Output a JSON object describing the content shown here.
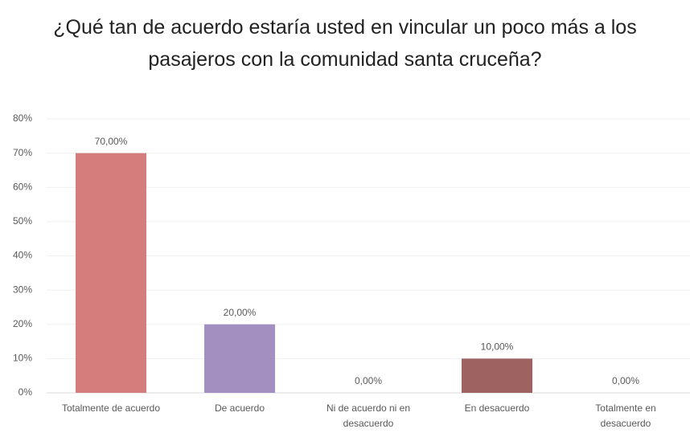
{
  "chart_data": {
    "type": "bar",
    "title": "¿Qué tan de acuerdo estaría usted en vincular un poco más a los pasajeros con la comunidad santa cruceña?",
    "categories": [
      "Totalmente de acuerdo",
      "De acuerdo",
      "Ni de acuerdo ni en desacuerdo",
      "En desacuerdo",
      "Totalmente en desacuerdo"
    ],
    "values": [
      70,
      20,
      0,
      10,
      0
    ],
    "value_labels": [
      "70,00%",
      "20,00%",
      "0,00%",
      "10,00%",
      "0,00%"
    ],
    "colors": [
      "#d57d7d",
      "#a38fc0",
      "#8fa0c8",
      "#9e6360",
      "#7fb0b0"
    ],
    "ylim": [
      0,
      80
    ],
    "yticks": [
      {
        "value": 0,
        "label": "0%"
      },
      {
        "value": 10,
        "label": "10%"
      },
      {
        "value": 20,
        "label": "20%"
      },
      {
        "value": 30,
        "label": "30%"
      },
      {
        "value": 40,
        "label": "40%"
      },
      {
        "value": 50,
        "label": "50%"
      },
      {
        "value": 60,
        "label": "60%"
      },
      {
        "value": 70,
        "label": "70%"
      },
      {
        "value": 80,
        "label": "80%"
      }
    ],
    "grid": true
  }
}
